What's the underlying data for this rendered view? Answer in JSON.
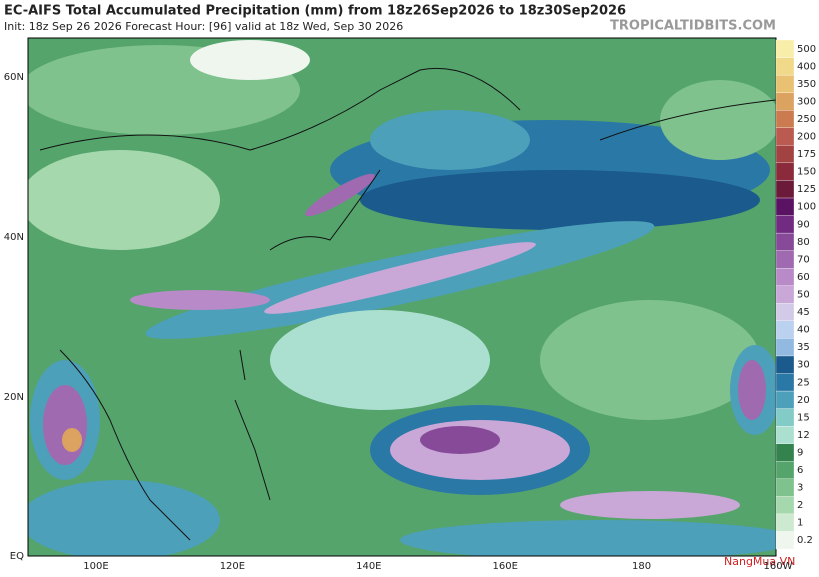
{
  "header": {
    "title": "EC-AIFS Total Accumulated Precipitation (mm) from 18z26Sep2026 to 18z30Sep2026",
    "subtitle": "Init: 18z Sep 26 2026   Forecast Hour: [96]   valid at 18z Wed, Sep 30 2026",
    "source": "TROPICALTIDBITS.COM"
  },
  "map": {
    "lat_labels": [
      "60N",
      "40N",
      "20N",
      "EQ"
    ],
    "lon_labels": [
      "100E",
      "120E",
      "140E",
      "160E",
      "180",
      "160W"
    ]
  },
  "colorbar": {
    "levels": [
      "0.2",
      "1",
      "2",
      "3",
      "6",
      "9",
      "12",
      "15",
      "20",
      "25",
      "30",
      "35",
      "40",
      "45",
      "50",
      "60",
      "70",
      "80",
      "90",
      "100",
      "125",
      "150",
      "175",
      "200",
      "250",
      "300",
      "350",
      "400",
      "500"
    ],
    "colors": [
      "#eef6ee",
      "#cde9cf",
      "#a6d8ad",
      "#7fc28e",
      "#55a46c",
      "#34834f",
      "#abe0d0",
      "#82cbc6",
      "#4ca0b9",
      "#2a78a6",
      "#1b5a8c",
      "#92b9e0",
      "#bad1ef",
      "#d3cae8",
      "#c9a8d8",
      "#b88ac8",
      "#a06ab1",
      "#874a99",
      "#712c82",
      "#5a1262",
      "#6c1a3a",
      "#8a2a3a",
      "#a24242",
      "#ba5a50",
      "#cc7a50",
      "#dca260",
      "#e8c272",
      "#f0da8a",
      "#f8eeaa"
    ]
  },
  "watermark": "NangMua.VN"
}
